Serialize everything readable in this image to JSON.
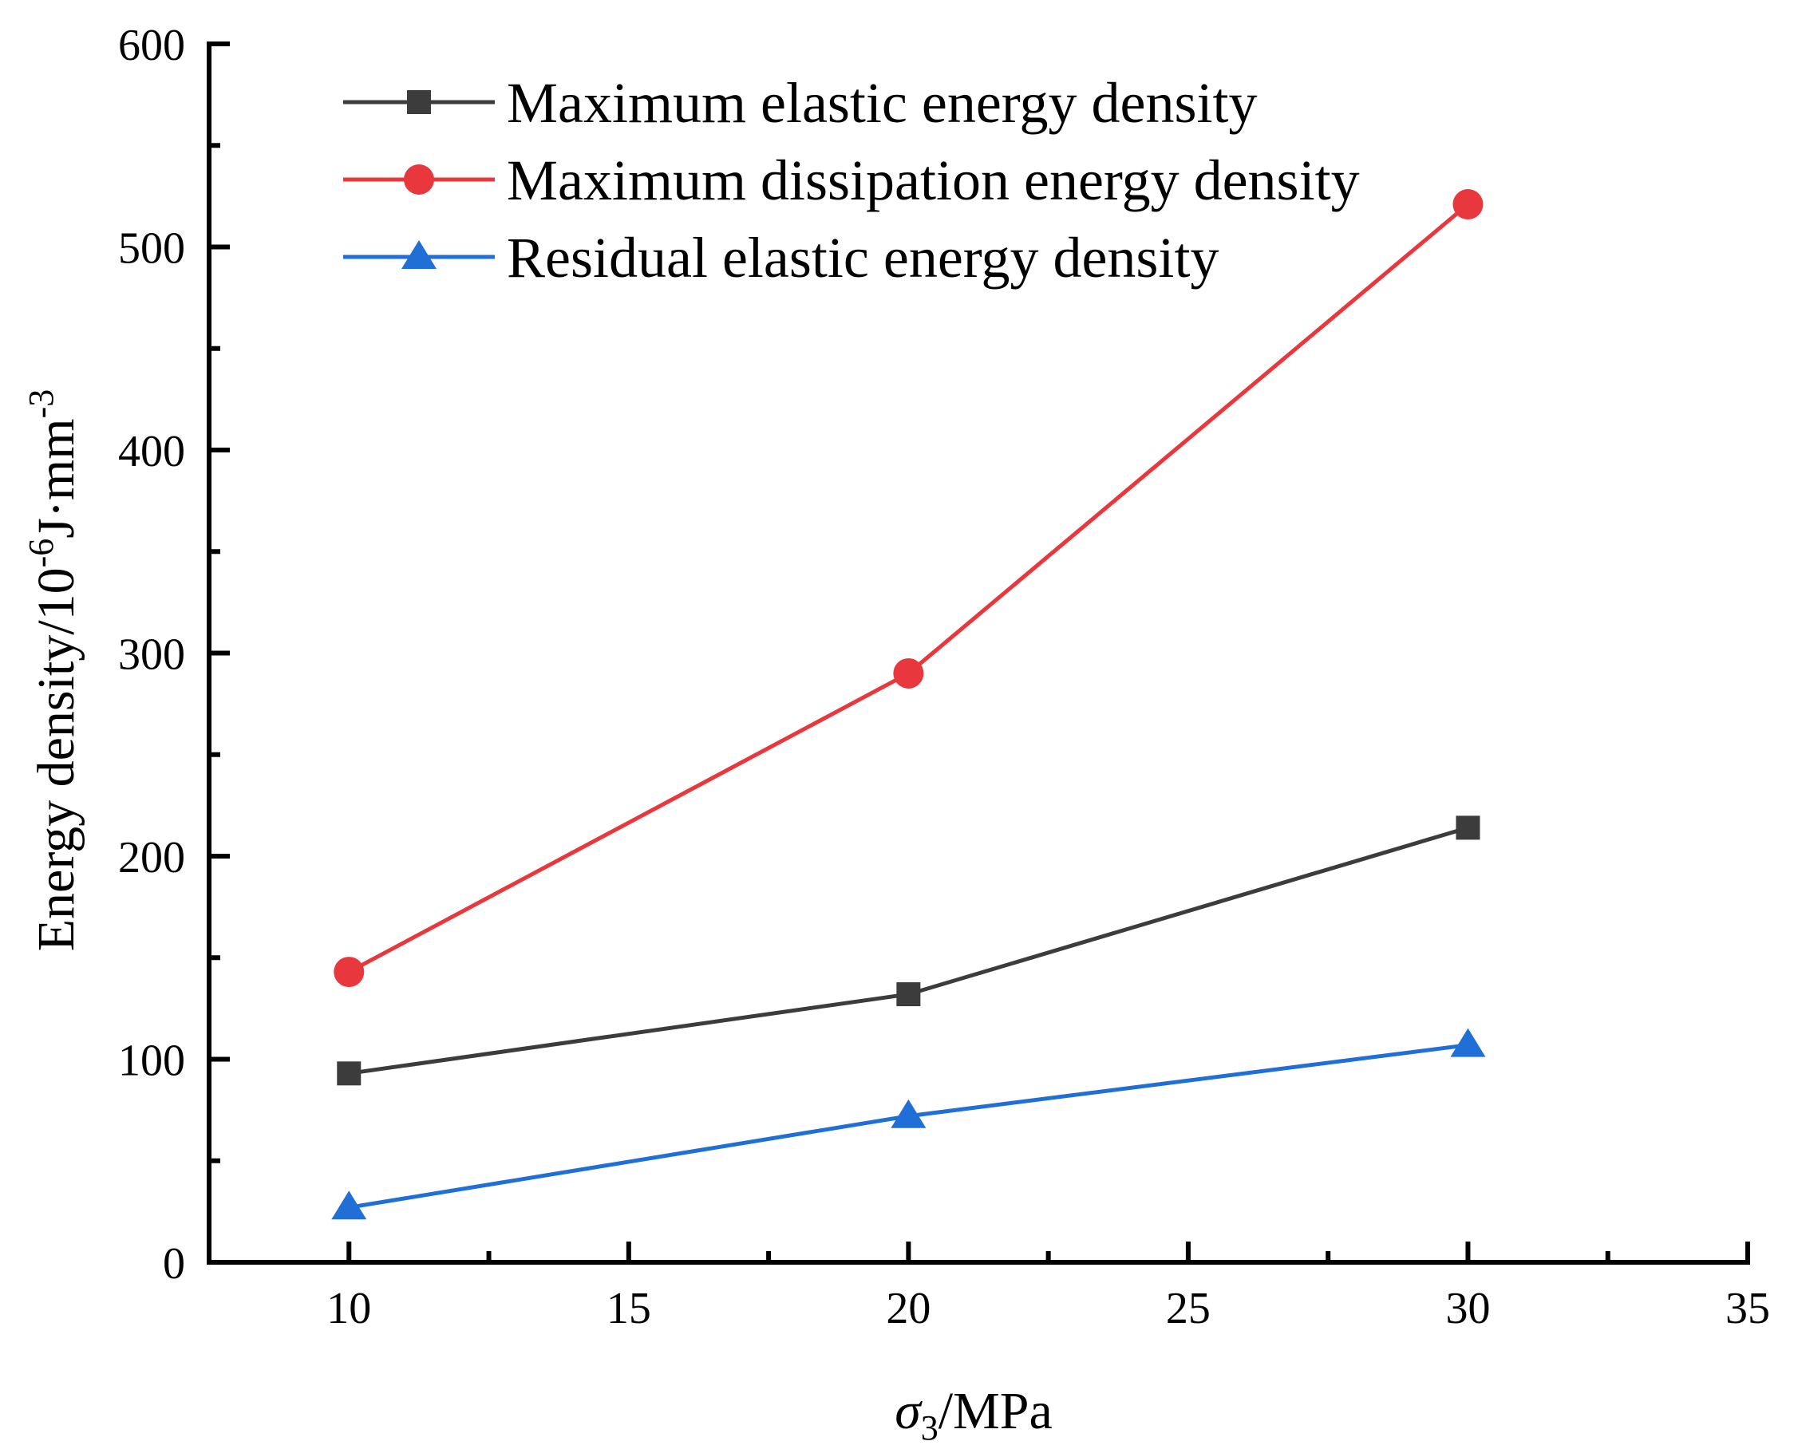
{
  "chart_data": {
    "type": "line",
    "title": "",
    "xlabel": {
      "symbol": "σ",
      "subscript": "3",
      "unit": "/MPa"
    },
    "ylabel": {
      "base": "Energy density/10",
      "exp1": "-6",
      "mid": "J·mm",
      "exp2": "-3"
    },
    "xlim": [
      7.5,
      35
    ],
    "ylim": [
      0,
      600
    ],
    "x_ticks": [
      10,
      15,
      20,
      25,
      30,
      35
    ],
    "x_tick_labels": [
      "10",
      "15",
      "20",
      "25",
      "30",
      "35"
    ],
    "y_ticks": [
      0,
      100,
      200,
      300,
      400,
      500,
      600
    ],
    "y_tick_labels": [
      "0",
      "100",
      "200",
      "300",
      "400",
      "500",
      "600"
    ],
    "x_minor_ticks": [
      12.5,
      17.5,
      22.5,
      27.5,
      32.5
    ],
    "y_minor_ticks": [
      50,
      150,
      250,
      350,
      450,
      550
    ],
    "grid": false,
    "legend_position": "top-left",
    "x": [
      10,
      20,
      30
    ],
    "series": [
      {
        "name": "Maximum elastic energy density",
        "marker": "square",
        "color": "#3c3c3c",
        "values": [
          93,
          132,
          214
        ]
      },
      {
        "name": "Maximum dissipation energy density",
        "marker": "circle",
        "color": "#e8383d",
        "values": [
          143,
          290,
          521
        ]
      },
      {
        "name": "Residual elastic energy density",
        "marker": "triangle",
        "color": "#1f6fd6",
        "values": [
          27,
          72,
          107
        ]
      }
    ]
  }
}
